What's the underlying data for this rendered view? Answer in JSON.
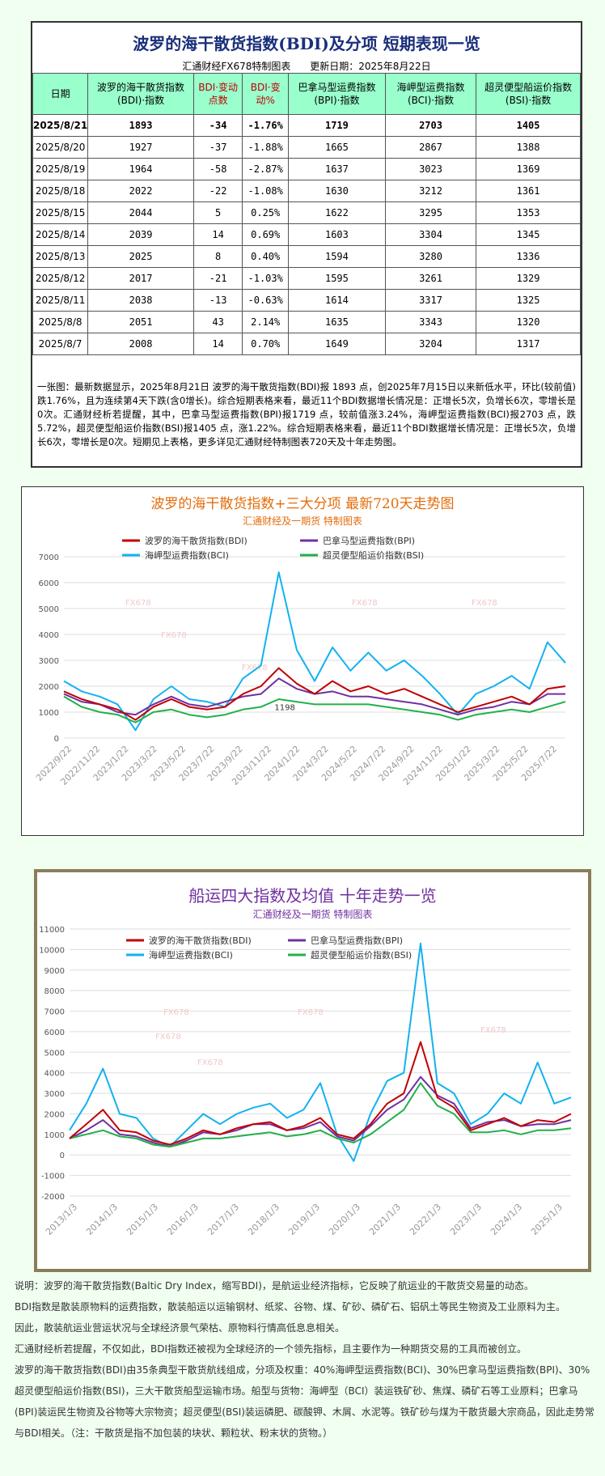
{
  "panel1": {
    "title": "波罗的海干散货指数(BDI)及分项  短期表现一览",
    "source": "汇通财经FX678特制图表",
    "update": "更新日期：2025年8月22日",
    "headers": [
      "日期",
      "波罗的海干散货指数(BDI)·指数",
      "BDI·变动点数",
      "BDI·变动%",
      "巴拿马型运费指数(BPI)·指数",
      "海岬型运费指数(BCI)·指数",
      "超灵便型船运价指数(BSI)·指数"
    ],
    "rows": [
      [
        "2025/8/21",
        "1893",
        "-34",
        "-1.76%",
        "1719",
        "2703",
        "1405"
      ],
      [
        "2025/8/20",
        "1927",
        "-37",
        "-1.88%",
        "1665",
        "2867",
        "1388"
      ],
      [
        "2025/8/19",
        "1964",
        "-58",
        "-2.87%",
        "1637",
        "3023",
        "1369"
      ],
      [
        "2025/8/18",
        "2022",
        "-22",
        "-1.08%",
        "1630",
        "3212",
        "1361"
      ],
      [
        "2025/8/15",
        "2044",
        "5",
        "0.25%",
        "1622",
        "3295",
        "1353"
      ],
      [
        "2025/8/14",
        "2039",
        "14",
        "0.69%",
        "1603",
        "3304",
        "1345"
      ],
      [
        "2025/8/13",
        "2025",
        "8",
        "0.40%",
        "1594",
        "3280",
        "1336"
      ],
      [
        "2025/8/12",
        "2017",
        "-21",
        "-1.03%",
        "1595",
        "3261",
        "1329"
      ],
      [
        "2025/8/11",
        "2038",
        "-13",
        "-0.63%",
        "1614",
        "3317",
        "1325"
      ],
      [
        "2025/8/8",
        "2051",
        "43",
        "2.14%",
        "1635",
        "3343",
        "1320"
      ],
      [
        "2025/8/7",
        "2008",
        "14",
        "0.70%",
        "1649",
        "3204",
        "1317"
      ]
    ],
    "note": "一张图：最新数据显示，2025年8月21日 波罗的海干散货指数(BDI)报 1893 点，创2025年7月15日以来新低水平，环比(较前值)跌1.76%，且为连续第4天下跌(含0增长)。综合短期表格来看，最近11个BDI数据增长情况是：正增长5次，负增长6次，零增长是0次。汇通财经析若提醒，其中，巴拿马型运费指数(BPI)报1719 点，较前值涨3.24%，海岬型运费指数(BCI)报2703 点，跌5.72%，超灵便型船运价指数(BSI)报1405 点，涨1.22%。综合短期表格来看，最近11个BDI数据增长情况是：正增长5次，负增长6次，零增长是0次。短期见上表格，更多详见汇通财经特制图表720天及十年走势图。"
  },
  "colors": {
    "bdi": "#c00000",
    "bpi": "#7030a0",
    "bci": "#12b2f0",
    "bsi": "#22b04b"
  },
  "chart_data": [
    {
      "type": "line",
      "title": "波罗的海干散货指数+三大分项  最新720天走势图",
      "subtitle": "汇通财经及一期货  特制图表",
      "watermark": "FX678",
      "annotation": "1198",
      "ylim": [
        0,
        7000
      ],
      "yticks": [
        0,
        1000,
        2000,
        3000,
        4000,
        5000,
        6000,
        7000
      ],
      "xlabels": [
        "2022/9/22",
        "2022/11/22",
        "2023/1/22",
        "2023/3/22",
        "2023/5/22",
        "2023/7/22",
        "2023/9/22",
        "2023/11/22",
        "2024/1/22",
        "2024/3/22",
        "2024/5/22",
        "2024/7/22",
        "2024/9/22",
        "2024/11/22",
        "2025/1/22",
        "2025/3/22",
        "2025/5/22",
        "2025/7/22"
      ],
      "series": [
        {
          "name": "波罗的海干散货指数(BDI)",
          "key": "bdi",
          "values": [
            1800,
            1500,
            1300,
            1100,
            700,
            1200,
            1500,
            1200,
            1100,
            1200,
            1700,
            2000,
            2700,
            2100,
            1700,
            2200,
            1800,
            2000,
            1700,
            1900,
            1600,
            1300,
            1000,
            1200,
            1400,
            1600,
            1300,
            1900,
            2000
          ]
        },
        {
          "name": "巴拿马型运费指数(BPI)",
          "key": "bpi",
          "values": [
            1700,
            1400,
            1300,
            1000,
            900,
            1300,
            1600,
            1300,
            1200,
            1400,
            1600,
            1700,
            2300,
            1900,
            1700,
            1800,
            1600,
            1600,
            1500,
            1400,
            1300,
            1100,
            900,
            1100,
            1200,
            1400,
            1300,
            1700,
            1700
          ]
        },
        {
          "name": "海岬型运费指数(BCI)",
          "key": "bci",
          "values": [
            2200,
            1800,
            1600,
            1300,
            300,
            1500,
            2000,
            1500,
            1400,
            1200,
            2300,
            2800,
            6400,
            3400,
            2200,
            3500,
            2600,
            3300,
            2600,
            3000,
            2400,
            1700,
            900,
            1700,
            2000,
            2400,
            1900,
            3700,
            2900
          ]
        },
        {
          "name": "超灵便型船运价指数(BSI)",
          "key": "bsi",
          "values": [
            1600,
            1200,
            1000,
            900,
            600,
            1000,
            1100,
            900,
            800,
            900,
            1100,
            1200,
            1500,
            1400,
            1300,
            1300,
            1300,
            1300,
            1200,
            1100,
            1000,
            900,
            700,
            900,
            1000,
            1100,
            1000,
            1200,
            1400
          ]
        }
      ]
    },
    {
      "type": "line",
      "title": "船运四大指数及均值 十年走势一览",
      "subtitle": "汇通财经及一期货 特制图表",
      "watermark": "FX678",
      "ylim": [
        -2000,
        11000
      ],
      "yticks": [
        -2000,
        -1000,
        0,
        1000,
        2000,
        3000,
        4000,
        5000,
        6000,
        7000,
        8000,
        9000,
        10000,
        11000
      ],
      "xlabels": [
        "2013/1/3",
        "2014/1/3",
        "2015/1/3",
        "2016/1/3",
        "2017/1/3",
        "2018/1/3",
        "2019/1/3",
        "2020/1/3",
        "2021/1/3",
        "2022/1/3",
        "2023/1/3",
        "2024/1/3",
        "2025/1/3"
      ],
      "series": [
        {
          "name": "波罗的海干散货指数(BDI)",
          "key": "bdi",
          "values": [
            800,
            1500,
            2200,
            1200,
            1100,
            700,
            500,
            800,
            1200,
            1000,
            1300,
            1500,
            1600,
            1200,
            1400,
            1800,
            1000,
            800,
            1500,
            2500,
            3000,
            5500,
            2800,
            2300,
            1200,
            1500,
            1800,
            1400,
            1700,
            1600,
            2000
          ]
        },
        {
          "name": "巴拿马型运费指数(BPI)",
          "key": "bpi",
          "values": [
            800,
            1200,
            1700,
            1000,
            900,
            600,
            400,
            700,
            1100,
            1000,
            1200,
            1500,
            1500,
            1200,
            1300,
            1600,
            900,
            700,
            1400,
            2200,
            2700,
            3800,
            2900,
            2500,
            1300,
            1600,
            1700,
            1400,
            1500,
            1500,
            1700
          ]
        },
        {
          "name": "海岬型运费指数(BCI)",
          "key": "bci",
          "values": [
            1200,
            2500,
            4200,
            2000,
            1800,
            800,
            400,
            1200,
            2000,
            1500,
            2000,
            2300,
            2500,
            1800,
            2200,
            3500,
            1000,
            -300,
            2000,
            3600,
            4000,
            10300,
            3500,
            3000,
            1500,
            2000,
            3000,
            2500,
            4500,
            2500,
            2800
          ]
        },
        {
          "name": "超灵便型船运价指数(BSI)",
          "key": "bsi",
          "values": [
            800,
            1000,
            1200,
            900,
            800,
            500,
            400,
            600,
            800,
            800,
            900,
            1000,
            1100,
            900,
            1000,
            1200,
            800,
            600,
            1000,
            1600,
            2200,
            3500,
            2400,
            2000,
            1100,
            1100,
            1200,
            1000,
            1200,
            1200,
            1300
          ]
        }
      ]
    }
  ],
  "bottom": [
    "说明：波罗的海干散货指数(Baltic Dry Index，缩写BDI)，是航运业经济指标，它反映了航运业的干散货交易量的动态。",
    "BDI指数是散装原物料的运费指数，散装船运以运输钢材、纸浆、谷物、煤、矿砂、磷矿石、铝矾土等民生物资及工业原料为主。",
    "因此，散装航运业营运状况与全球经济景气荣枯、原物料行情高低息息相关。",
    "汇通财经析若提醒，不仅如此，BDI指数还被视为全球经济的一个领先指标，且主要作为一种期货交易的工具而被创立。",
    "波罗的海干散货指数(BDI)由35条典型干散货航线组成，分项及权重：40%海岬型运费指数(BCI)、30%巴拿马型运费指数(BPI)、30%超灵便型船运价指数(BSI)，三大干散货船型运输市场。船型与货物：海岬型（BCI）装运铁矿砂、焦煤、磷矿石等工业原料；巴拿马(BPI)装运民生物资及谷物等大宗物资；超灵便型(BSI)装运磷肥、碳酸钾、木屑、水泥等。铁矿砂与煤为干散货最大宗商品，因此走势常与BDI相关。（注：干散货是指不加包装的块状、颗粒状、粉末状的货物。）"
  ]
}
